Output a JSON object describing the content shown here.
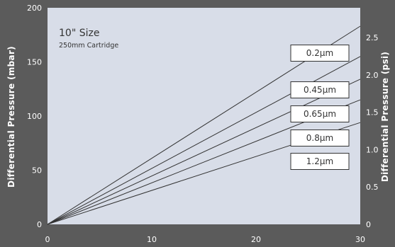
{
  "chart_data": {
    "type": "line",
    "title": "10\" Size",
    "subtitle": "250mm Cartridge",
    "ylabel_left": "Differential Pressure (mbar)",
    "ylabel_right": "Differential Pressure (psi)",
    "xlim": [
      0,
      30
    ],
    "ylim_left": [
      0,
      200
    ],
    "ylim_right": [
      0,
      2.9
    ],
    "x_ticks": [
      0,
      10,
      20,
      30
    ],
    "y_ticks_left": [
      0,
      50,
      100,
      150,
      200
    ],
    "y_ticks_right": [
      0,
      0.5,
      1.0,
      1.5,
      2.0,
      2.5
    ],
    "y_tick_labels_right": [
      "0",
      "0.5",
      "1.0",
      "1.5",
      "2.0",
      "2.5"
    ],
    "grid": false,
    "colors": {
      "background": "#5b5b5b",
      "plot_area": "#d8dde8",
      "lines": "#333333",
      "label_box": "#ffffff"
    },
    "series": [
      {
        "name": "0.2μm",
        "x": [
          0,
          30
        ],
        "y": [
          0,
          183
        ]
      },
      {
        "name": "0.45μm",
        "x": [
          0,
          30
        ],
        "y": [
          0,
          155
        ]
      },
      {
        "name": "0.65μm",
        "x": [
          0,
          30
        ],
        "y": [
          0,
          134
        ]
      },
      {
        "name": "0.8μm",
        "x": [
          0,
          30
        ],
        "y": [
          0,
          115
        ]
      },
      {
        "name": "1.2μm",
        "x": [
          0,
          30
        ],
        "y": [
          0,
          94
        ]
      }
    ]
  }
}
